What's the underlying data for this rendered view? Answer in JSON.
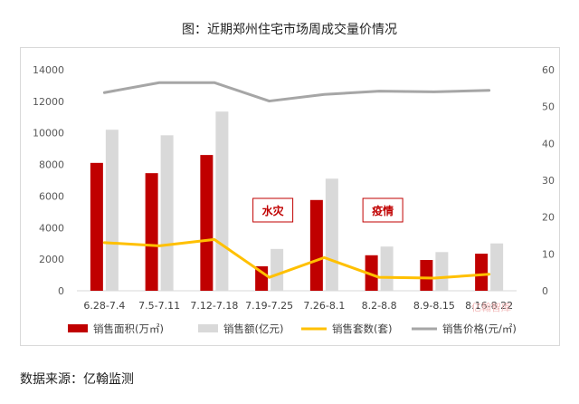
{
  "title": "图：近期郑州住宅市场周成交量价情况",
  "source": "数据来源：亿翰监测",
  "watermark": "亿翰智库",
  "colors": {
    "area": "#c00000",
    "amount": "#d9d9d9",
    "count": "#ffc000",
    "price": "#a6a6a6"
  },
  "chart_data": {
    "type": "bar",
    "categories": [
      "6.28-7.4",
      "7.5-7.11",
      "7.12-7.18",
      "7.19-7.25",
      "7.26-8.1",
      "8.2-8.8",
      "8.9-8.15",
      "8.16-8.22"
    ],
    "y_left": {
      "min": 0,
      "max": 14000,
      "ticks": [
        0,
        2000,
        4000,
        6000,
        8000,
        10000,
        12000,
        14000
      ]
    },
    "y_right": {
      "min": 0,
      "max": 60,
      "ticks": [
        0,
        10,
        20,
        30,
        40,
        50,
        60
      ]
    },
    "series": [
      {
        "name": "销售面积(万㎡)",
        "type": "bar",
        "axis": "left",
        "color": "#c00000",
        "values": [
          8100,
          7450,
          8600,
          1550,
          5750,
          2250,
          1950,
          2350
        ]
      },
      {
        "name": "销售额(亿元)",
        "type": "bar",
        "axis": "left",
        "color": "#d9d9d9",
        "values": [
          10200,
          9850,
          11350,
          2650,
          7100,
          2800,
          2450,
          3000
        ]
      },
      {
        "name": "销售套数(套)",
        "type": "line",
        "axis": "left",
        "color": "#ffc000",
        "values": [
          3050,
          2850,
          3250,
          850,
          2100,
          850,
          800,
          1050
        ]
      },
      {
        "name": "销售价格(元/㎡)",
        "type": "line",
        "axis": "right",
        "color": "#a6a6a6",
        "values": [
          53.8,
          56.5,
          56.5,
          51.5,
          53.3,
          54.2,
          54.0,
          54.4
        ]
      }
    ],
    "annotations": [
      {
        "text": "水灾",
        "category_index": 3
      },
      {
        "text": "疫情",
        "category_index": 5
      }
    ],
    "legend_position": "bottom",
    "grid": false
  }
}
